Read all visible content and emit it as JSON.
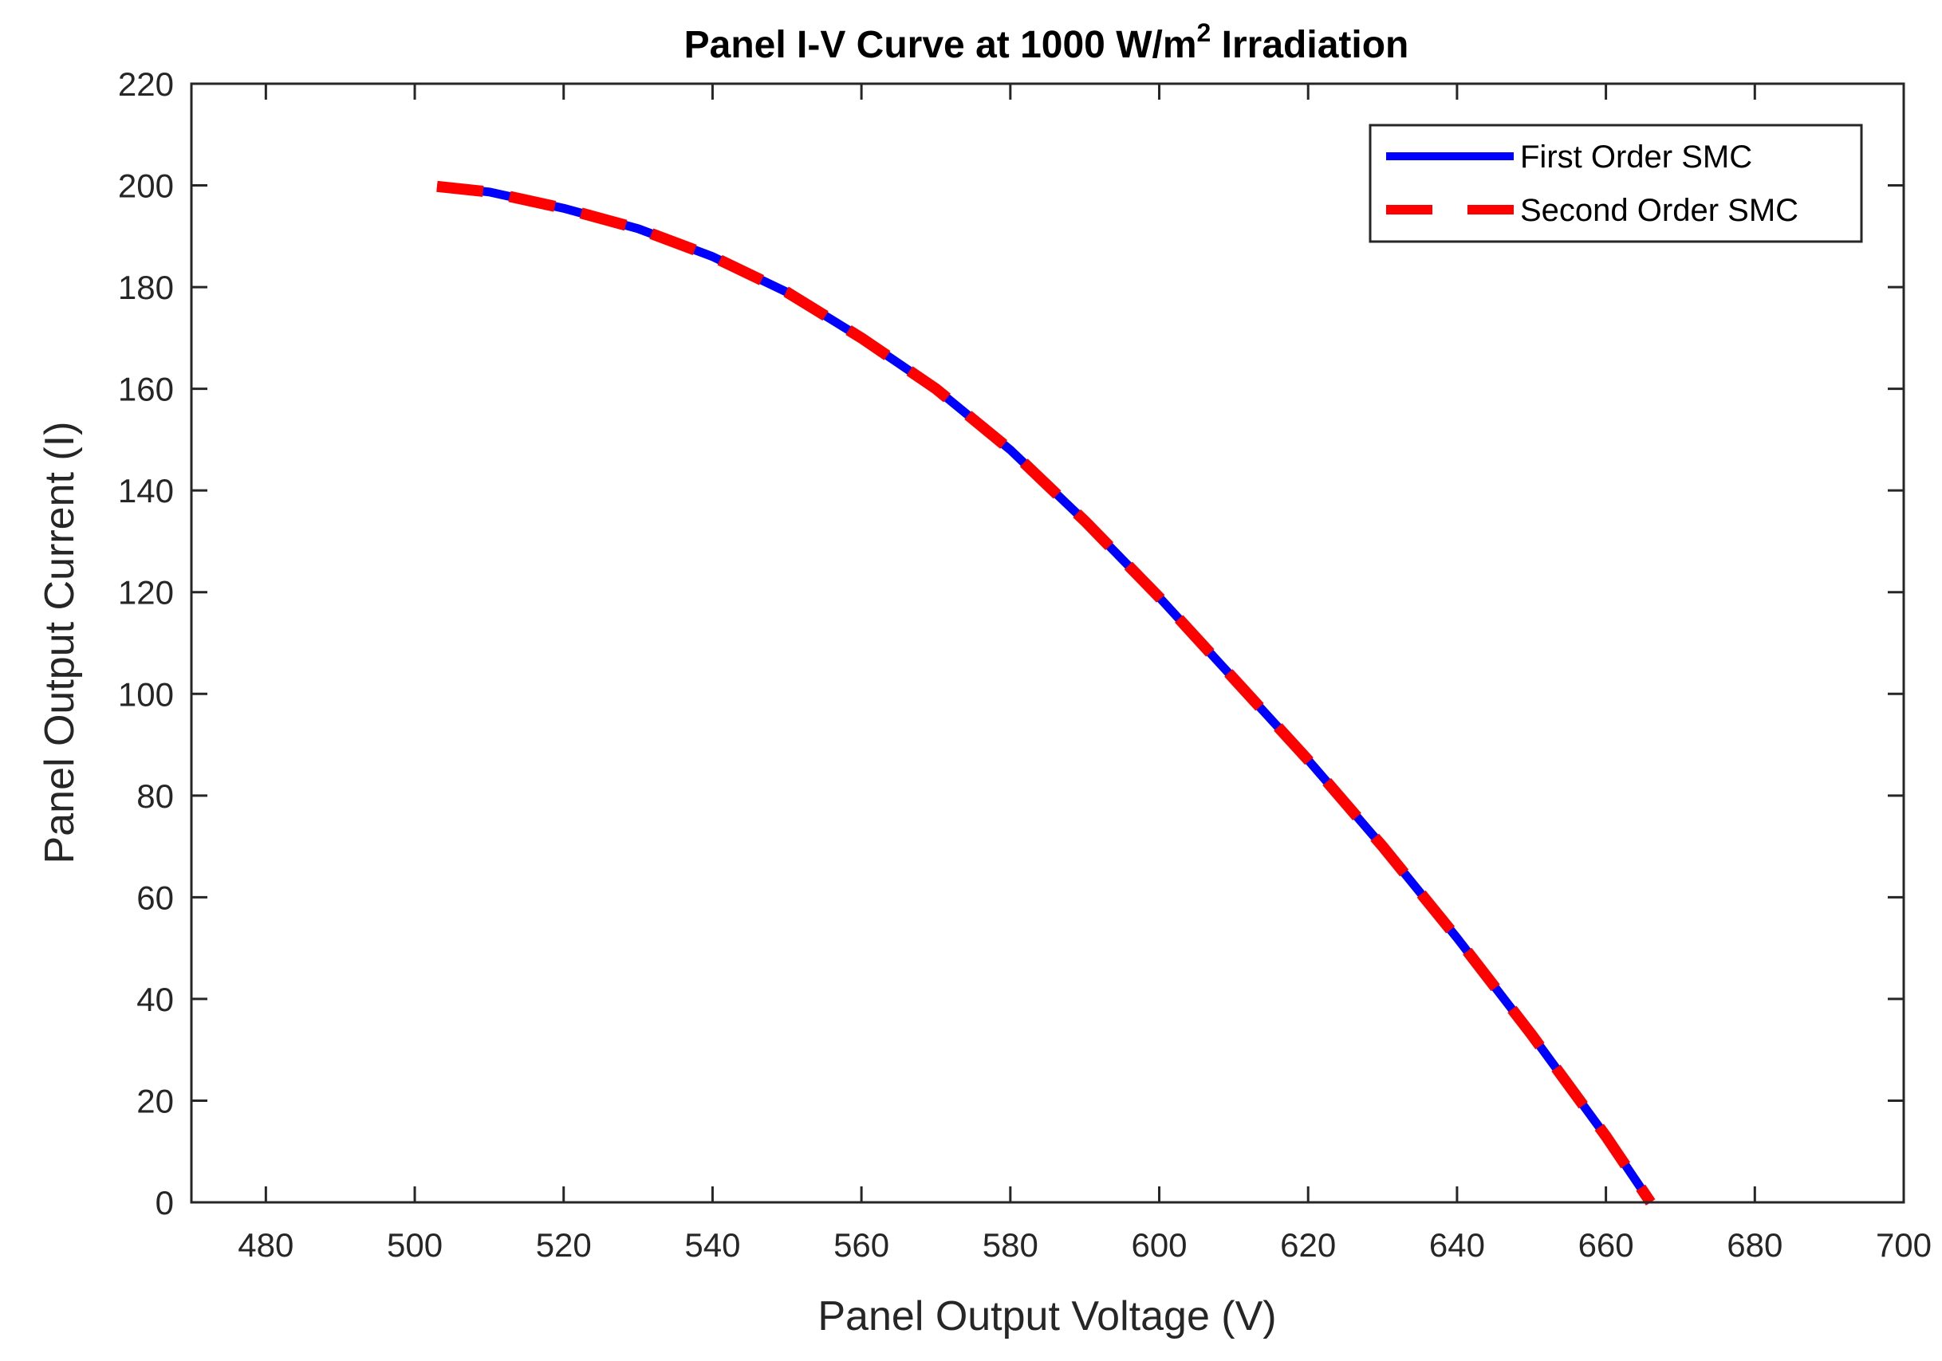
{
  "chart_data": {
    "type": "line",
    "title": "Panel I-V Curve at 1000 W/m",
    "title_superscript": "2",
    "title_suffix": " Irradiation",
    "xlabel": "Panel Output Voltage (V)",
    "ylabel": "Panel Output Current (I)",
    "xlim": [
      470,
      700
    ],
    "ylim": [
      0,
      220
    ],
    "xticks": [
      480,
      500,
      520,
      540,
      560,
      580,
      600,
      620,
      640,
      660,
      680,
      700
    ],
    "yticks": [
      0,
      20,
      40,
      60,
      80,
      100,
      120,
      140,
      160,
      180,
      200,
      220
    ],
    "grid": false,
    "legend_position": "top-right",
    "series": [
      {
        "name": "First Order SMC",
        "color": "#0000ff",
        "style": "solid",
        "x": [
          503,
          510,
          520,
          530,
          540,
          550,
          560,
          570,
          580,
          590,
          600,
          610,
          620,
          630,
          640,
          650,
          660,
          666
        ],
        "y": [
          199.8,
          198.7,
          195.5,
          191.5,
          186.0,
          179.0,
          170.0,
          160.0,
          148.0,
          134.0,
          119.0,
          103.0,
          87.0,
          70.0,
          52.0,
          33.0,
          13.0,
          0
        ]
      },
      {
        "name": "Second Order SMC",
        "color": "#ff0000",
        "style": "dashed",
        "x": [
          503,
          510,
          520,
          530,
          540,
          550,
          560,
          570,
          580,
          590,
          600,
          610,
          620,
          630,
          640,
          650,
          660,
          666
        ],
        "y": [
          199.8,
          198.7,
          195.5,
          191.5,
          186.0,
          179.0,
          170.0,
          160.0,
          148.0,
          134.0,
          119.0,
          103.0,
          87.0,
          70.0,
          52.0,
          33.0,
          13.0,
          0
        ]
      }
    ]
  }
}
